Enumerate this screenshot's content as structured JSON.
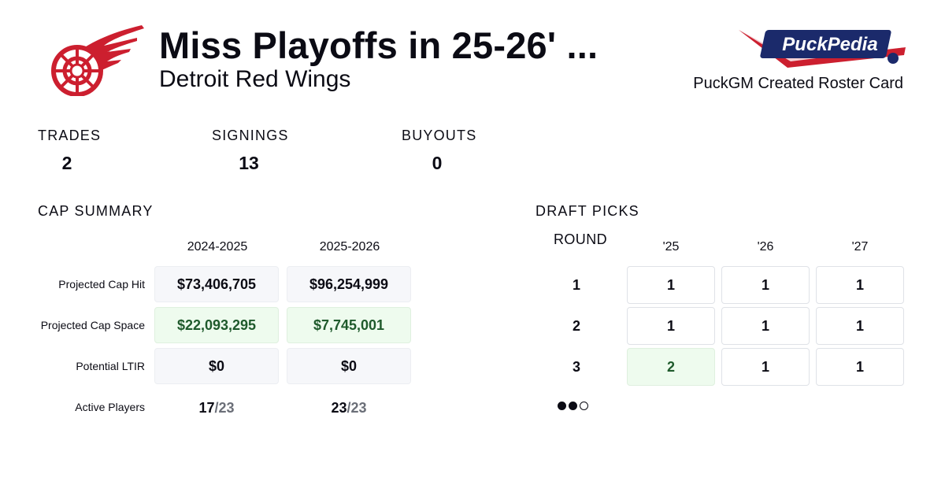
{
  "header": {
    "title": "Miss Playoffs in 25-26' ...",
    "team": "Detroit Red Wings",
    "brand_text": "PuckPedia",
    "card_label": "PuckGM Created Roster Card"
  },
  "colors": {
    "team_red": "#cc1f2f",
    "positive_bg": "#eefbee",
    "positive_text": "#1f5a2c",
    "brand_blue": "#1b2a6b"
  },
  "stats": [
    {
      "label": "TRADES",
      "value": "2"
    },
    {
      "label": "SIGNINGS",
      "value": "13"
    },
    {
      "label": "BUYOUTS",
      "value": "0"
    }
  ],
  "cap_summary": {
    "title": "CAP SUMMARY",
    "seasons": [
      "2024-2025",
      "2025-2026"
    ],
    "rows": [
      {
        "label": "Projected Cap Hit",
        "values": [
          "$73,406,705",
          "$96,254,999"
        ]
      },
      {
        "label": "Projected Cap Space",
        "values": [
          "$22,093,295",
          "$7,745,001"
        ]
      },
      {
        "label": "Potential LTIR",
        "values": [
          "$0",
          "$0"
        ]
      }
    ],
    "active_players": {
      "label": "Active Players",
      "values": [
        {
          "count": "17",
          "max": "/23"
        },
        {
          "count": "23",
          "max": "/23"
        }
      ]
    }
  },
  "draft_picks": {
    "title": "DRAFT PICKS",
    "round_header": "ROUND",
    "years": [
      "'25",
      "'26",
      "'27"
    ],
    "rows": [
      {
        "round": "1",
        "picks": [
          "1",
          "1",
          "1"
        ]
      },
      {
        "round": "2",
        "picks": [
          "1",
          "1",
          "1"
        ]
      },
      {
        "round": "3",
        "picks": [
          "2",
          "1",
          "1"
        ]
      }
    ],
    "legend_dots": [
      "filled",
      "filled",
      "empty"
    ]
  }
}
